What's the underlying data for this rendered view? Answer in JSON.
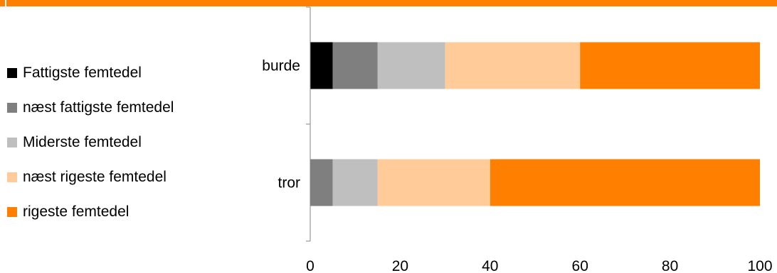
{
  "colors": {
    "top_bar": "#FF8000",
    "axis": "#868686",
    "series": [
      "#000000",
      "#7F7F7F",
      "#BFBFBF",
      "#FFCC99",
      "#FF8000"
    ]
  },
  "chart_data": {
    "type": "bar",
    "orientation": "horizontal",
    "stacked": true,
    "title": "",
    "xlabel": "",
    "ylabel": "",
    "categories": [
      "burde",
      "tror"
    ],
    "xlim": [
      0,
      100
    ],
    "x_ticks": [
      "0",
      "20",
      "40",
      "60",
      "80",
      "100"
    ],
    "grid": false,
    "legend_position": "left",
    "series": [
      {
        "name": "Fattigste femtedel",
        "color": "#000000",
        "values": [
          5,
          0
        ]
      },
      {
        "name": "næst fattigste femtedel",
        "color": "#7F7F7F",
        "values": [
          10,
          5
        ]
      },
      {
        "name": "Miderste femtedel",
        "color": "#BFBFBF",
        "values": [
          15,
          10
        ]
      },
      {
        "name": "næst rigeste femtedel",
        "color": "#FFCC99",
        "values": [
          30,
          25
        ]
      },
      {
        "name": "rigeste femtedel",
        "color": "#FF8000",
        "values": [
          40,
          60
        ]
      }
    ]
  }
}
